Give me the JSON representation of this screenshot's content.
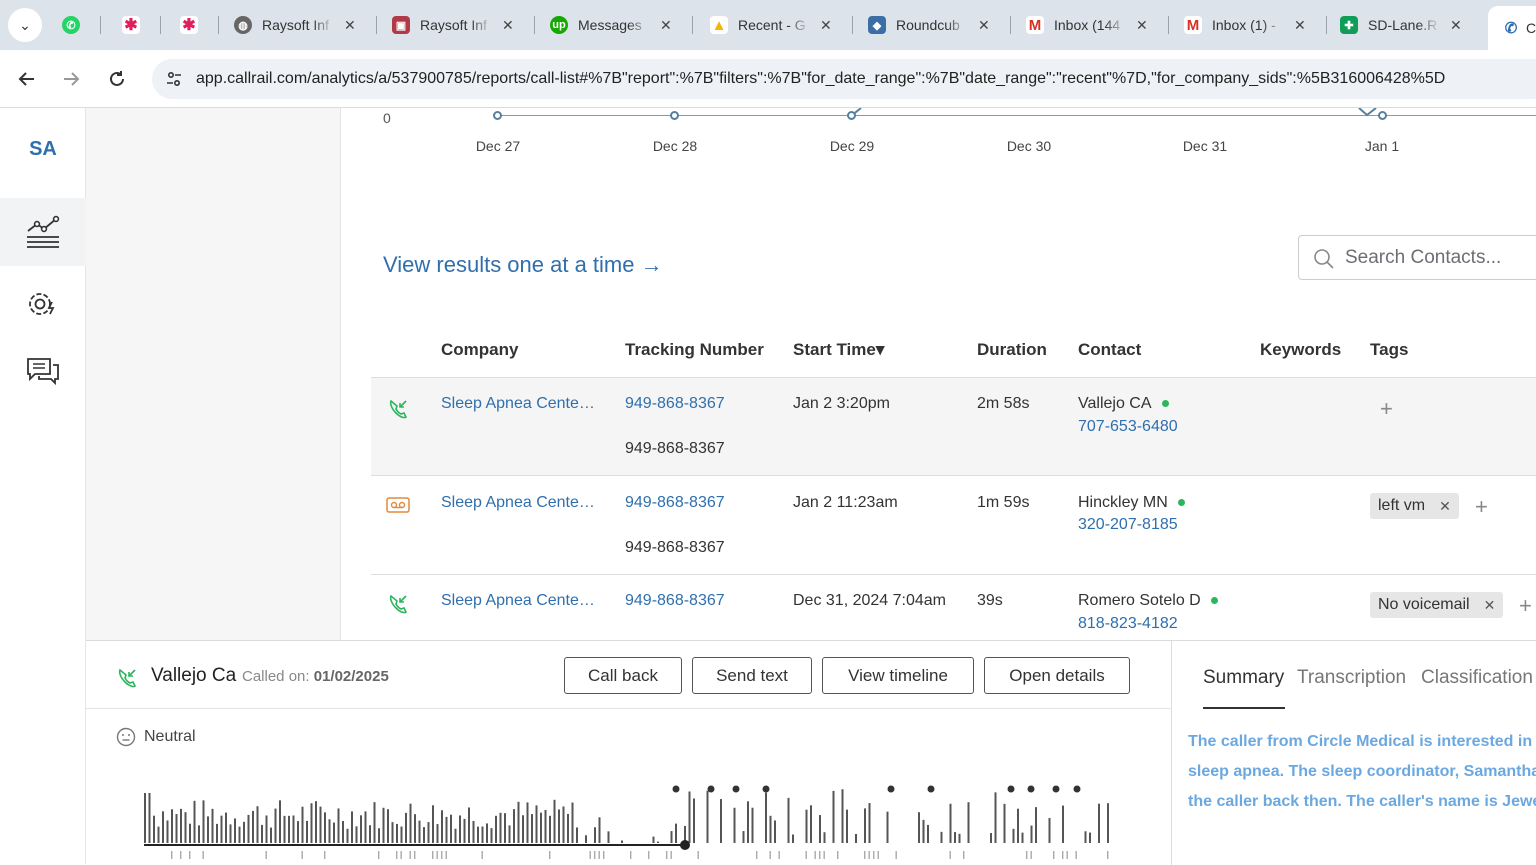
{
  "browser": {
    "tabs": [
      {
        "title": "",
        "favicon": "whatsapp-icon",
        "color": "#25d366"
      },
      {
        "title": "",
        "favicon": "slack-icon",
        "color": "#e01e5a"
      },
      {
        "title": "",
        "favicon": "slack-icon",
        "color": "#e01e5a"
      },
      {
        "title": "Raysoft Inf",
        "favicon": "globe-icon",
        "color": "#555555"
      },
      {
        "title": "Raysoft Inf",
        "favicon": "briefcase-icon",
        "color": "#b23a48"
      },
      {
        "title": "Messages",
        "favicon": "upwork-icon",
        "color": "#14a800"
      },
      {
        "title": "Recent - G",
        "favicon": "drive-icon",
        "color": "#f4b400"
      },
      {
        "title": "Roundcub",
        "favicon": "roundcube-icon",
        "color": "#3a6ea5"
      },
      {
        "title": "Inbox (144",
        "favicon": "gmail-icon",
        "color": "#d93025"
      },
      {
        "title": "Inbox (1) -",
        "favicon": "gmail-icon",
        "color": "#d93025"
      },
      {
        "title": "SD-Lane.R",
        "favicon": "sheets-icon",
        "color": "#0f9d58"
      },
      {
        "title": "C",
        "favicon": "phone-icon",
        "color": "#2f6fad"
      }
    ],
    "url": "app.callrail.com/analytics/a/537900785/reports/call-list#%7B\"report\":%7B\"filters\":%7B\"for_date_range\":%7B\"date_range\":\"recent\"%7D,\"for_company_sids\":%5B316006428%5D"
  },
  "rail": {
    "avatar": "SA",
    "items": [
      "analytics-icon",
      "settings-icon",
      "chat-icon"
    ]
  },
  "chart": {
    "zero_label": "0",
    "ticks": [
      "Dec 27",
      "Dec 28",
      "Dec 29",
      "Dec 30",
      "Dec 31",
      "Jan 1"
    ]
  },
  "view_link": "View results one at a time →",
  "search": {
    "placeholder": "Search Contacts..."
  },
  "table": {
    "headers": {
      "company": "Company",
      "tracking": "Tracking Number",
      "start": "Start Time▾",
      "duration": "Duration",
      "contact": "Contact",
      "keywords": "Keywords",
      "tags": "Tags"
    },
    "rows": [
      {
        "type_icon": "inbound-call-icon",
        "company": "Sleep Apnea Cente…",
        "tracking": "949-868-8367",
        "tracking_sub": "949-868-8367",
        "start": "Jan 2 3:20pm",
        "duration": "2m 58s",
        "contact_name": "Vallejo CA",
        "contact_phone": "707-653-6480",
        "tags": []
      },
      {
        "type_icon": "voicemail-icon",
        "company": "Sleep Apnea Cente…",
        "tracking": "949-868-8367",
        "tracking_sub": "949-868-8367",
        "start": "Jan 2 11:23am",
        "duration": "1m 59s",
        "contact_name": "Hinckley MN",
        "contact_phone": "320-207-8185",
        "tags": [
          "left vm"
        ]
      },
      {
        "type_icon": "inbound-call-icon",
        "company": "Sleep Apnea Cente…",
        "tracking": "949-868-8367",
        "tracking_sub": "",
        "start": "Dec 31, 2024 7:04am",
        "duration": "39s",
        "contact_name": "Romero Sotelo D",
        "contact_phone": "818-823-4182",
        "tags": [
          "No voicemail"
        ]
      }
    ]
  },
  "detail": {
    "caller": "Vallejo Ca",
    "called_on_label": "Called on:",
    "called_on_date": "01/02/2025",
    "buttons": {
      "call_back": "Call back",
      "send_text": "Send text",
      "view_timeline": "View timeline",
      "open_details": "Open details"
    },
    "sentiment": "Neutral",
    "tabs": {
      "summary": "Summary",
      "transcription": "Transcription",
      "classification": "Classification"
    },
    "summary_lines": [
      "The caller from Circle Medical is interested in re",
      "sleep apnea. The sleep coordinator, Samantha,",
      "the caller back then. The caller's name is Jewel"
    ]
  },
  "colors": {
    "link": "#2f6fad",
    "online_dot": "#2db55d",
    "summary": "#6ba8e0"
  }
}
